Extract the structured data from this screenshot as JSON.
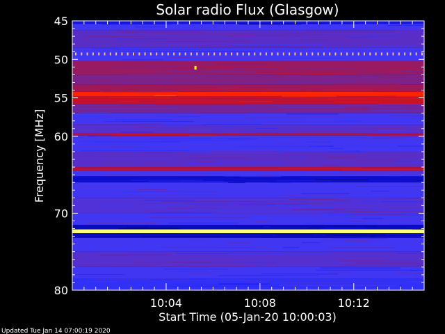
{
  "chart_data": {
    "type": "heatmap",
    "title": "Solar radio Flux (Glasgow)",
    "xlabel": "Start Time (05-Jan-20 10:00:03)",
    "ylabel": "Frequency [MHz]",
    "x_unit": "minutes after 10:00:03",
    "xlim": [
      0,
      15
    ],
    "ylim": [
      45,
      80
    ],
    "y_inverted": true,
    "x_ticks": [
      {
        "value": 4,
        "label": "10:04"
      },
      {
        "value": 8,
        "label": "10:08"
      },
      {
        "value": 12,
        "label": "10:12"
      }
    ],
    "y_ticks": [
      {
        "value": 45,
        "label": "45"
      },
      {
        "value": 50,
        "label": "50"
      },
      {
        "value": 55,
        "label": "55"
      },
      {
        "value": 60,
        "label": "60"
      },
      {
        "value": 70,
        "label": "70"
      },
      {
        "value": 80,
        "label": "80"
      }
    ],
    "colormap": [
      "#000070",
      "#1010e0",
      "#3a3aff",
      "#802080",
      "#c01030",
      "#ff2000",
      "#ff8000",
      "#ffff80"
    ],
    "bands": [
      {
        "from": 45.0,
        "to": 45.4,
        "level": 0.15
      },
      {
        "from": 45.4,
        "to": 46.2,
        "level": 0.3
      },
      {
        "from": 46.2,
        "to": 48.5,
        "level": 0.35
      },
      {
        "from": 48.5,
        "to": 50.2,
        "level": 0.3
      },
      {
        "from": 50.2,
        "to": 52.0,
        "level": 0.48
      },
      {
        "from": 52.0,
        "to": 53.3,
        "level": 0.42
      },
      {
        "from": 53.3,
        "to": 54.2,
        "level": 0.5
      },
      {
        "from": 54.2,
        "to": 54.8,
        "level": 0.72
      },
      {
        "from": 54.8,
        "to": 55.8,
        "level": 0.58
      },
      {
        "from": 55.8,
        "to": 57.0,
        "level": 0.4
      },
      {
        "from": 57.0,
        "to": 58.5,
        "level": 0.3
      },
      {
        "from": 58.5,
        "to": 59.6,
        "level": 0.34
      },
      {
        "from": 59.6,
        "to": 59.9,
        "level": 0.52
      },
      {
        "from": 59.9,
        "to": 62.0,
        "level": 0.3
      },
      {
        "from": 62.0,
        "to": 64.0,
        "level": 0.35
      },
      {
        "from": 64.0,
        "to": 64.5,
        "level": 0.55
      },
      {
        "from": 64.5,
        "to": 65.2,
        "level": 0.3
      },
      {
        "from": 65.2,
        "to": 66.0,
        "level": 0.12
      },
      {
        "from": 66.0,
        "to": 68.0,
        "level": 0.3
      },
      {
        "from": 68.0,
        "to": 70.0,
        "level": 0.33
      },
      {
        "from": 70.0,
        "to": 71.5,
        "level": 0.3
      },
      {
        "from": 71.5,
        "to": 72.1,
        "level": 0.1
      },
      {
        "from": 72.1,
        "to": 72.6,
        "level": 1.0
      },
      {
        "from": 72.6,
        "to": 73.2,
        "level": 0.1
      },
      {
        "from": 73.2,
        "to": 75.0,
        "level": 0.3
      },
      {
        "from": 75.0,
        "to": 77.0,
        "level": 0.34
      },
      {
        "from": 77.0,
        "to": 78.5,
        "level": 0.3
      },
      {
        "from": 78.5,
        "to": 80.0,
        "level": 0.25
      }
    ],
    "interference_line": {
      "frequency": 49.3,
      "color": "#ffc060"
    },
    "spike": {
      "time": 5.25,
      "frequency": 51.1,
      "color": "#ffff00"
    }
  },
  "footer": {
    "updated": "Updated Tue Jan 14 07:00:19 2020"
  }
}
